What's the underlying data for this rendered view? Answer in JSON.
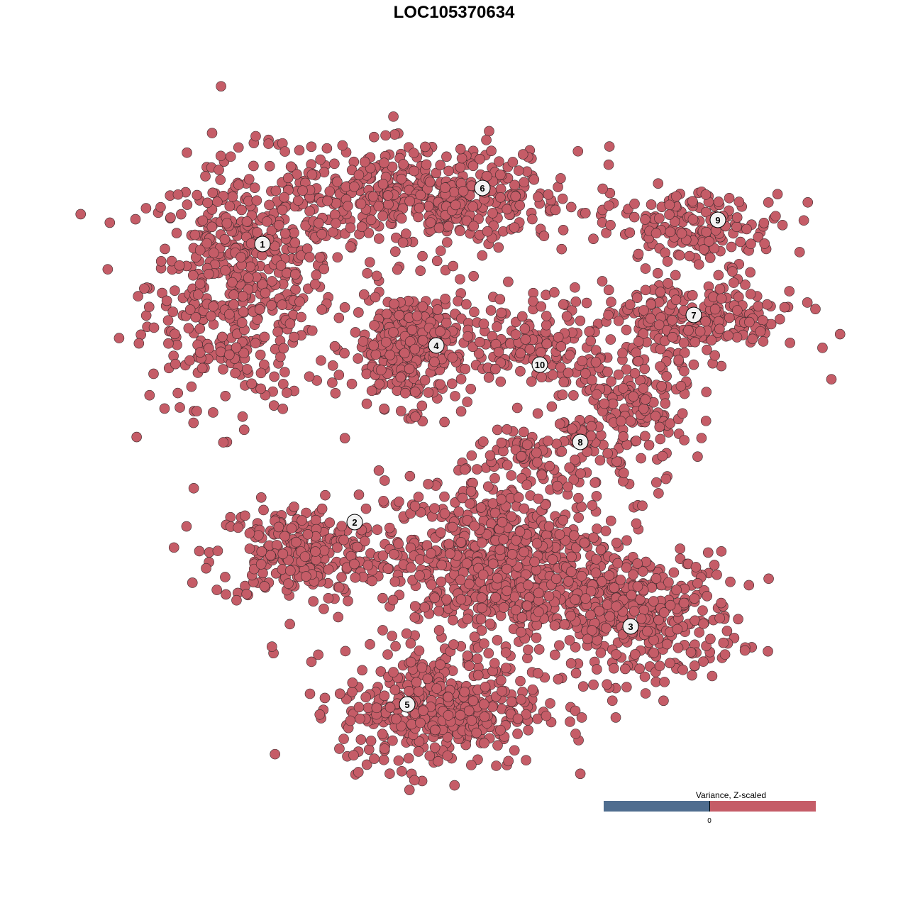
{
  "title": "LOC105370634",
  "legend": {
    "title": "Variance, Z-scaled",
    "tick_label": "0",
    "low_color": "#4f6d8f",
    "high_color": "#c55c67"
  },
  "chart_data": {
    "type": "scatter",
    "title": "LOC105370634",
    "xlabel": "",
    "ylabel": "",
    "axes_visible": false,
    "grid": false,
    "point_color": "#c55c67",
    "point_edge_color": "#3a2a2c",
    "all_points_value": "above 0 (high)",
    "xlim": [
      -60,
      60
    ],
    "ylim": [
      -60,
      60
    ],
    "clusters": [
      {
        "id": "1",
        "label_pos": [
          -27,
          29.6
        ],
        "components": [
          {
            "center": [
              -30,
              24
            ],
            "sd": [
              6.5,
              8.5
            ],
            "n": 520
          }
        ]
      },
      {
        "id": "2",
        "label_pos": [
          -14,
          -9.6
        ],
        "components": [
          {
            "center": [
              -22,
              -14
            ],
            "sd": [
              6,
              3.5
            ],
            "n": 260
          }
        ]
      },
      {
        "id": "3",
        "label_pos": [
          24.9,
          -24.3
        ],
        "components": [
          {
            "center": [
              26,
              -23
            ],
            "sd": [
              7,
              4.5
            ],
            "n": 380
          }
        ]
      },
      {
        "id": "4",
        "label_pos": [
          -2.5,
          15.3
        ],
        "components": [
          {
            "center": [
              -6,
              15
            ],
            "sd": [
              4.2,
              4.2
            ],
            "n": 330
          }
        ]
      },
      {
        "id": "5",
        "label_pos": [
          -6.6,
          -35.3
        ],
        "components": [
          {
            "center": [
              -2,
              -36
            ],
            "sd": [
              7,
              4.2
            ],
            "n": 420
          },
          {
            "center": [
              6,
              -15
            ],
            "sd": [
              8,
              6
            ],
            "n": 700
          }
        ]
      },
      {
        "id": "6",
        "label_pos": [
          4,
          37.5
        ],
        "components": [
          {
            "center": [
              -4,
              36
            ],
            "sd": [
              11,
              3.5
            ],
            "n": 520
          }
        ]
      },
      {
        "id": "7",
        "label_pos": [
          33.8,
          19.6
        ],
        "components": [
          {
            "center": [
              34,
              19
            ],
            "sd": [
              7.5,
              2.8
            ],
            "n": 230
          }
        ]
      },
      {
        "id": "8",
        "label_pos": [
          17.8,
          1.7
        ],
        "components": [
          {
            "center": [
              24,
              6
            ],
            "sd": [
              4.5,
              5.5
            ],
            "n": 220
          },
          {
            "center": [
              12,
              0
            ],
            "sd": [
              5,
              2
            ],
            "n": 80
          }
        ]
      },
      {
        "id": "9",
        "label_pos": [
          37.2,
          33
        ],
        "components": [
          {
            "center": [
              35,
              32
            ],
            "sd": [
              6,
              2.5
            ],
            "n": 150
          }
        ]
      },
      {
        "id": "10",
        "label_pos": [
          12.1,
          12.6
        ],
        "components": [
          {
            "center": [
              11,
              16
            ],
            "sd": [
              4,
              3.5
            ],
            "n": 120
          }
        ]
      }
    ]
  }
}
